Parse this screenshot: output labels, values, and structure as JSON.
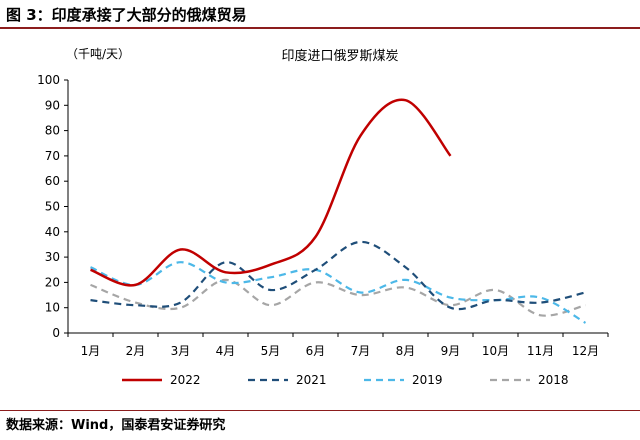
{
  "figure": {
    "title": "图 3：印度承接了大部分的俄煤贸易",
    "source": "数据来源：Wind，国泰君安证券研究"
  },
  "chart_data": {
    "type": "line",
    "title": "印度进口俄罗斯煤炭",
    "ylabel": "（千吨/天）",
    "xlabel": "",
    "categories": [
      "1月",
      "2月",
      "3月",
      "4月",
      "5月",
      "6月",
      "7月",
      "8月",
      "9月",
      "10月",
      "11月",
      "12月"
    ],
    "ylim": [
      0,
      100
    ],
    "yticks": [
      0,
      10,
      20,
      30,
      40,
      50,
      60,
      70,
      80,
      90,
      100
    ],
    "grid": false,
    "legend": "bottom",
    "series": [
      {
        "name": "2022",
        "style": "solid",
        "color": "#c00000",
        "values": [
          25,
          19,
          33,
          24,
          27,
          38,
          78,
          92,
          70,
          null,
          null,
          null
        ]
      },
      {
        "name": "2021",
        "style": "dashed",
        "color": "#1f4e79",
        "values": [
          13,
          11,
          12,
          28,
          17,
          25,
          36,
          26,
          10,
          13,
          12,
          16
        ]
      },
      {
        "name": "2019",
        "style": "dashed",
        "color": "#4cb8e8",
        "values": [
          26,
          19,
          28,
          20,
          22,
          25,
          16,
          21,
          14,
          13,
          14,
          4
        ]
      },
      {
        "name": "2018",
        "style": "dashed",
        "color": "#a6a6a6",
        "values": [
          19,
          12,
          10,
          21,
          11,
          20,
          15,
          18,
          11,
          17,
          7,
          11
        ]
      }
    ]
  }
}
